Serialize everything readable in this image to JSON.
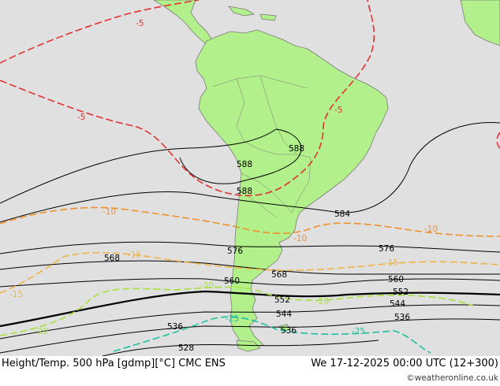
{
  "map": {
    "region": "South America",
    "colors": {
      "ocean": "#e0e0e0",
      "land": "#b2f08b",
      "coast": "#7a7a7a",
      "height_contour": "#000000",
      "temp_warm": "#e23232",
      "temp_mild": "#f0902c",
      "temp_cool": "#f0b34a",
      "temp_cold": "#a8e040",
      "temp_colder": "#20c0a0"
    },
    "height_labels": [
      "588",
      "588",
      "588",
      "584",
      "576",
      "576",
      "568",
      "568",
      "560",
      "560",
      "552",
      "552",
      "544",
      "544",
      "536",
      "536",
      "536",
      "528"
    ],
    "temp_labels": [
      "-5",
      "-5",
      "-5",
      "-10",
      "-10",
      "-10",
      "-15",
      "-15",
      "-15",
      "-20",
      "-20",
      "-20",
      "-25",
      "-25"
    ]
  },
  "footer": {
    "caption": "Height/Temp. 500 hPa [gdmp][°C] CMC ENS",
    "valid_time": "We 17-12-2025 00:00 UTC (12+300)",
    "credit": "©weatheronline.co.uk"
  }
}
